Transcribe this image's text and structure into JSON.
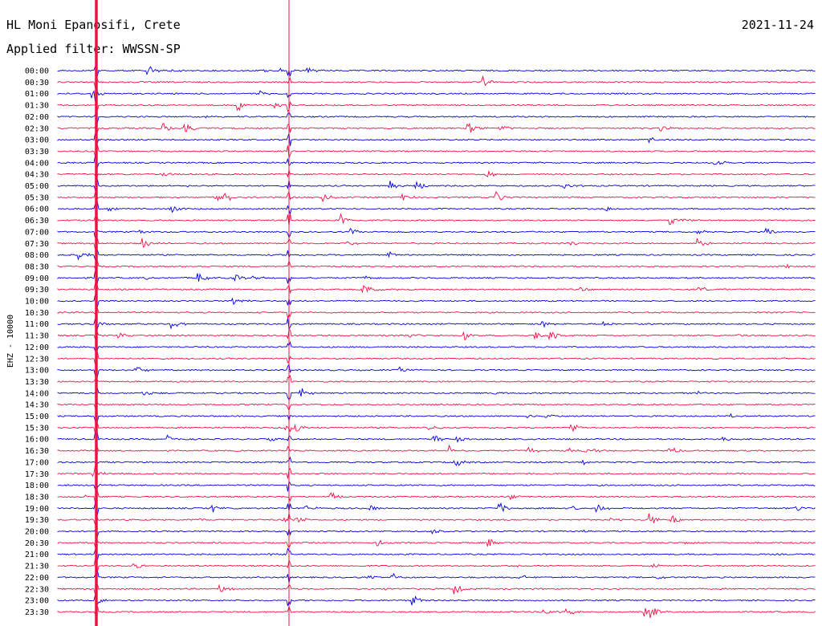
{
  "header": {
    "station": "HL Moni Epanosifi, Crete",
    "filter": "Applied filter: WWSSN-SP",
    "date": "2021-11-24"
  },
  "chart_data": {
    "type": "line",
    "title": "HL Moni Epanosifi, Crete",
    "ylabel": "EHZ - 10000",
    "colors": {
      "even": "#0000dd",
      "odd": "#ee1144"
    },
    "rows": [
      "00:00",
      "00:30",
      "01:00",
      "01:30",
      "02:00",
      "02:30",
      "03:00",
      "03:30",
      "04:00",
      "04:30",
      "05:00",
      "05:30",
      "06:00",
      "06:30",
      "07:00",
      "07:30",
      "08:00",
      "08:30",
      "09:00",
      "09:30",
      "10:00",
      "10:30",
      "11:00",
      "11:30",
      "12:00",
      "12:30",
      "13:00",
      "13:30",
      "14:00",
      "14:30",
      "15:00",
      "15:30",
      "16:00",
      "16:30",
      "17:00",
      "17:30",
      "18:00",
      "18:30",
      "19:00",
      "19:30",
      "20:00",
      "20:30",
      "21:00",
      "21:30",
      "22:00",
      "22:30",
      "23:00",
      "23:30"
    ]
  }
}
